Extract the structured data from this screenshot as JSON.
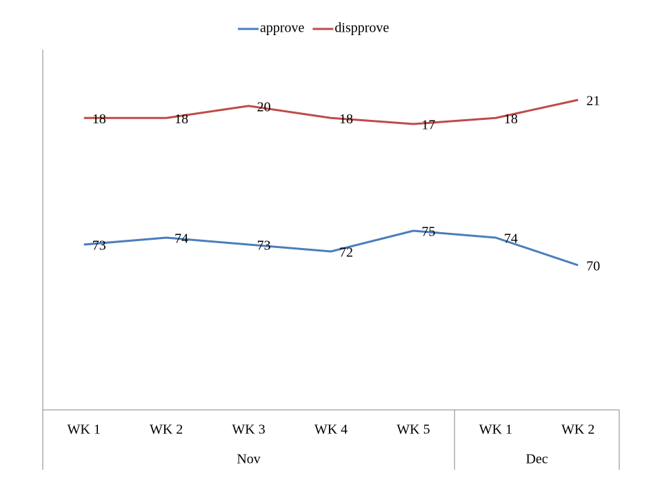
{
  "chart_data": {
    "type": "line",
    "categories": [
      "WK 1",
      "WK 2",
      "WK 3",
      "WK 4",
      "WK 5",
      "WK 1",
      "WK 2"
    ],
    "groups": [
      {
        "label": "Nov",
        "span": 5
      },
      {
        "label": "Dec",
        "span": 2
      }
    ],
    "series": [
      {
        "name": "approve",
        "color": "#4a7ebb",
        "values": [
          73,
          74,
          73,
          72,
          75,
          74,
          70
        ]
      },
      {
        "name": "dispprove",
        "color": "#be4b48",
        "axis": "y2",
        "values": [
          18,
          18,
          20,
          18,
          17,
          18,
          21
        ]
      }
    ],
    "legend": "top"
  }
}
